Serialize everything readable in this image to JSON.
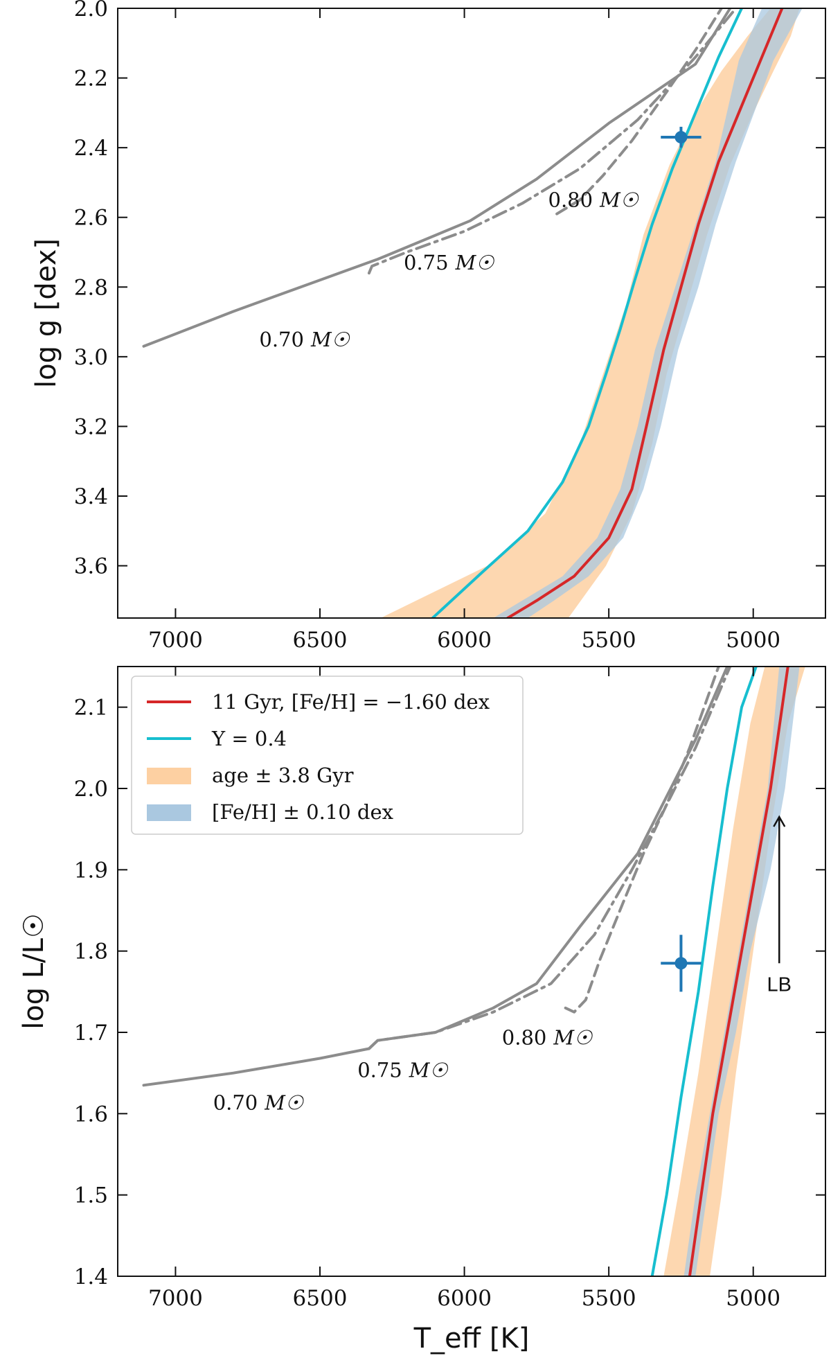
{
  "chart_data": [
    {
      "type": "line",
      "panel": "top",
      "title": "",
      "xlabel": "T_eff [K]",
      "ylabel": "log g [dex]",
      "xlim": [
        7200,
        4750
      ],
      "ylim": [
        3.75,
        2.0
      ],
      "xticks": [
        7000,
        6500,
        6000,
        5500,
        5000
      ],
      "yticks": [
        2.0,
        2.2,
        2.4,
        2.6,
        2.8,
        3.0,
        3.2,
        3.4,
        3.6
      ],
      "series": [
        {
          "name": "11 Gyr, [Fe/H] = -1.60 dex",
          "color": "#d62728",
          "x": [
            5850,
            5750,
            5620,
            5500,
            5420,
            5370,
            5310,
            5250,
            5190,
            5120,
            5040,
            4970,
            4900
          ],
          "y": [
            3.75,
            3.7,
            3.63,
            3.52,
            3.38,
            3.2,
            2.98,
            2.8,
            2.62,
            2.44,
            2.28,
            2.14,
            2.0
          ]
        },
        {
          "name": "Y = 0.4",
          "color": "#17becf",
          "x": [
            6110,
            5940,
            5780,
            5660,
            5570,
            5510,
            5460,
            5410,
            5350,
            5280,
            5200,
            5120,
            5040
          ],
          "y": [
            3.75,
            3.62,
            3.5,
            3.36,
            3.2,
            3.05,
            2.92,
            2.78,
            2.62,
            2.46,
            2.3,
            2.14,
            2.0
          ]
        },
        {
          "name": "0.70 Msun track",
          "color": "#8c8c8c",
          "style": "solid",
          "x": [
            7110,
            6800,
            6500,
            6300,
            6270,
            5980,
            5750,
            5500,
            5200,
            5080
          ],
          "y": [
            2.97,
            2.87,
            2.78,
            2.72,
            2.71,
            2.61,
            2.49,
            2.33,
            2.16,
            2.0
          ]
        },
        {
          "name": "0.75 Msun track",
          "color": "#8c8c8c",
          "style": "dashdot",
          "x": [
            6330,
            6320,
            6200,
            6000,
            5800,
            5600,
            5400,
            5200,
            5060
          ],
          "y": [
            2.76,
            2.74,
            2.7,
            2.64,
            2.56,
            2.46,
            2.32,
            2.14,
            2.0
          ]
        },
        {
          "name": "0.80 Msun track",
          "color": "#8c8c8c",
          "style": "dashed",
          "x": [
            5680,
            5640,
            5600,
            5520,
            5420,
            5300,
            5200,
            5110
          ],
          "y": [
            2.59,
            2.57,
            2.55,
            2.48,
            2.38,
            2.24,
            2.12,
            2.0
          ]
        }
      ],
      "bands": [
        {
          "name": "age ± 3.8 Gyr",
          "color": "#fdd0a2",
          "upper_x": [
            6290,
            5920,
            5720,
            5600,
            5520,
            5440,
            5380,
            5290,
            5200,
            5110,
            5020,
            4940
          ],
          "lower_x": [
            5640,
            5510,
            5420,
            5350,
            5300,
            5230,
            5160,
            5080,
            5000,
            4930,
            4870,
            4840
          ],
          "y": [
            3.75,
            3.6,
            3.45,
            3.25,
            3.05,
            2.85,
            2.65,
            2.45,
            2.3,
            2.18,
            2.08,
            2.0
          ]
        },
        {
          "name": "[Fe/H] ± 0.10 dex",
          "color": "#aac8e0",
          "upper_x": [
            5900,
            5800,
            5660,
            5540,
            5460,
            5400,
            5340,
            5270,
            5200,
            5130,
            5050,
            4970
          ],
          "lower_x": [
            5780,
            5690,
            5570,
            5450,
            5380,
            5320,
            5260,
            5190,
            5130,
            5060,
            4930,
            4830
          ],
          "y": [
            3.75,
            3.7,
            3.63,
            3.52,
            3.38,
            3.2,
            2.98,
            2.8,
            2.62,
            2.44,
            2.15,
            2.0
          ]
        }
      ],
      "observed_point": {
        "x": 5250,
        "y": 2.37,
        "xerr": 70,
        "yerr": 0.03
      },
      "annotations": [
        {
          "num": "0.70",
          "sub": "M☉",
          "x": 6710,
          "y": 2.97
        },
        {
          "num": "0.75",
          "sub": "M☉",
          "x": 6210,
          "y": 2.75
        },
        {
          "num": "0.80",
          "sub": "M☉",
          "x": 5710,
          "y": 2.57
        }
      ]
    },
    {
      "type": "line",
      "panel": "bottom",
      "title": "",
      "xlabel": "T_eff [K]",
      "ylabel": "log L/L☉",
      "xlim": [
        7200,
        4750
      ],
      "ylim": [
        1.4,
        2.15
      ],
      "xticks": [
        7000,
        6500,
        6000,
        5500,
        5000
      ],
      "yticks": [
        1.4,
        1.5,
        1.6,
        1.7,
        1.8,
        1.9,
        2.0,
        2.1
      ],
      "series": [
        {
          "name": "11 Gyr, [Fe/H] = -1.60 dex",
          "color": "#d62728",
          "x": [
            5220,
            5180,
            5140,
            5090,
            5040,
            4990,
            4940,
            4880
          ],
          "y": [
            1.4,
            1.5,
            1.6,
            1.7,
            1.8,
            1.9,
            2.0,
            2.15
          ]
        },
        {
          "name": "Y = 0.4",
          "color": "#17becf",
          "x": [
            5350,
            5300,
            5250,
            5190,
            5140,
            5090,
            5040,
            4990
          ],
          "y": [
            1.4,
            1.5,
            1.62,
            1.75,
            1.88,
            2.0,
            2.1,
            2.15
          ]
        },
        {
          "name": "0.70 Msun track",
          "color": "#8c8c8c",
          "style": "solid",
          "x": [
            7110,
            6800,
            6500,
            6330,
            6300,
            6100,
            5900,
            5750,
            5600,
            5400,
            5300,
            5200,
            5090
          ],
          "y": [
            1.635,
            1.65,
            1.668,
            1.68,
            1.69,
            1.7,
            1.73,
            1.76,
            1.83,
            1.92,
            1.99,
            2.06,
            2.15
          ]
        },
        {
          "name": "0.75 Msun track",
          "color": "#8c8c8c",
          "style": "dashdot",
          "x": [
            6330,
            6300,
            6100,
            5900,
            5700,
            5550,
            5420,
            5300,
            5200,
            5080
          ],
          "y": [
            1.68,
            1.69,
            1.7,
            1.725,
            1.76,
            1.82,
            1.9,
            1.98,
            2.05,
            2.15
          ]
        },
        {
          "name": "0.80 Msun track",
          "color": "#8c8c8c",
          "style": "dashed",
          "x": [
            5650,
            5620,
            5580,
            5530,
            5450,
            5380,
            5300,
            5220,
            5120
          ],
          "y": [
            1.73,
            1.725,
            1.74,
            1.79,
            1.86,
            1.92,
            1.98,
            2.05,
            2.15
          ]
        }
      ],
      "bands": [
        {
          "name": "age ± 3.8 Gyr",
          "color": "#fdd0a2",
          "upper_x": [
            5310,
            5260,
            5190,
            5130,
            5070,
            5010,
            4960
          ],
          "lower_x": [
            5150,
            5110,
            5060,
            5000,
            4940,
            4880,
            4820
          ],
          "y": [
            1.4,
            1.5,
            1.65,
            1.8,
            1.95,
            2.08,
            2.15
          ]
        },
        {
          "name": "[Fe/H] ± 0.10 dex",
          "color": "#aac8e0",
          "upper_x": [
            5240,
            5200,
            5150,
            5100,
            5050,
            5000,
            4950,
            4910
          ],
          "lower_x": [
            5200,
            5160,
            5120,
            5060,
            5010,
            4940,
            4890,
            4840
          ],
          "y": [
            1.4,
            1.5,
            1.6,
            1.7,
            1.8,
            1.9,
            2.0,
            2.15
          ]
        }
      ],
      "observed_point": {
        "x": 5250,
        "y": 1.785,
        "xerr": 70,
        "yerr": 0.035
      },
      "annotations": [
        {
          "num": "0.70",
          "sub": "M☉",
          "x": 6870,
          "y": 1.605
        },
        {
          "num": "0.75",
          "sub": "M☉",
          "x": 6370,
          "y": 1.645
        },
        {
          "num": "0.80",
          "sub": "M☉",
          "x": 5870,
          "y": 1.685
        }
      ],
      "arrow_label": {
        "text": "LB",
        "x": 4910,
        "y_from": 1.785,
        "y_to": 1.965
      },
      "legend": {
        "position": "upper-left",
        "entries": [
          {
            "text": "11 Gyr, [Fe/H] = −1.60 dex",
            "color": "#d62728",
            "kind": "line"
          },
          {
            "text": "Y = 0.4",
            "color": "#17becf",
            "kind": "line"
          },
          {
            "text": "age ± 3.8 Gyr",
            "color": "#fdd0a2",
            "kind": "patch"
          },
          {
            "text": "[Fe/H] ± 0.10 dex",
            "color": "#aac8e0",
            "kind": "patch"
          }
        ]
      }
    }
  ]
}
